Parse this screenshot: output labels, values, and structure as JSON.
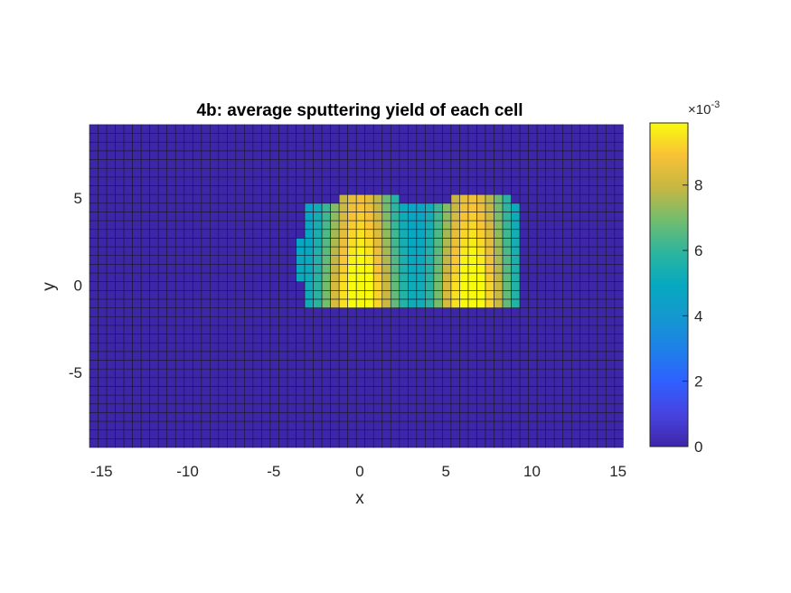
{
  "chart_data": {
    "type": "heatmap",
    "title": "4b: average sputtering yield of each cell",
    "xlabel": "x",
    "ylabel": "y",
    "xlim": [
      -15.7,
      15.7
    ],
    "ylim": [
      -9.3,
      9.3
    ],
    "xticks": [
      -15,
      -10,
      -5,
      0,
      5,
      10,
      15
    ],
    "xtick_labels": [
      "-15",
      "-10",
      "-5",
      "0",
      "5",
      "10",
      "15"
    ],
    "yticks": [
      -5,
      0,
      5
    ],
    "ytick_labels": [
      "-5",
      "0",
      "5"
    ],
    "grid": {
      "x_edges": {
        "start": -15.7,
        "step": 0.5,
        "count": 63
      },
      "y_edges": {
        "start": -9.3,
        "step": 0.5,
        "count": 38
      }
    },
    "colorbar": {
      "min": 0,
      "max": 0.0099,
      "ticks": [
        0,
        2,
        4,
        6,
        8
      ],
      "tick_labels": [
        "0",
        "2",
        "4",
        "6",
        "8"
      ],
      "multiplier_base": "×10",
      "multiplier_exp": "-3",
      "colormap": "parula"
    },
    "nonzero_region": {
      "x_range": [
        -3.7,
        9.3
      ],
      "y_range": [
        -1.3,
        5.2
      ],
      "description_values": [
        {
          "x": 0,
          "y": 0,
          "value": 0.0099
        },
        {
          "x": 6.5,
          "y": 0,
          "value": 0.0098
        },
        {
          "x": 3.3,
          "y": 3,
          "value": 0.0048
        },
        {
          "x": -3,
          "y": 3,
          "value": 0.005
        },
        {
          "x": 9,
          "y": 3,
          "value": 0.005
        }
      ]
    },
    "colors": {
      "background_cell": "#3e26a8",
      "grid_line": "#1a1a2e",
      "axis": "#262626"
    }
  }
}
